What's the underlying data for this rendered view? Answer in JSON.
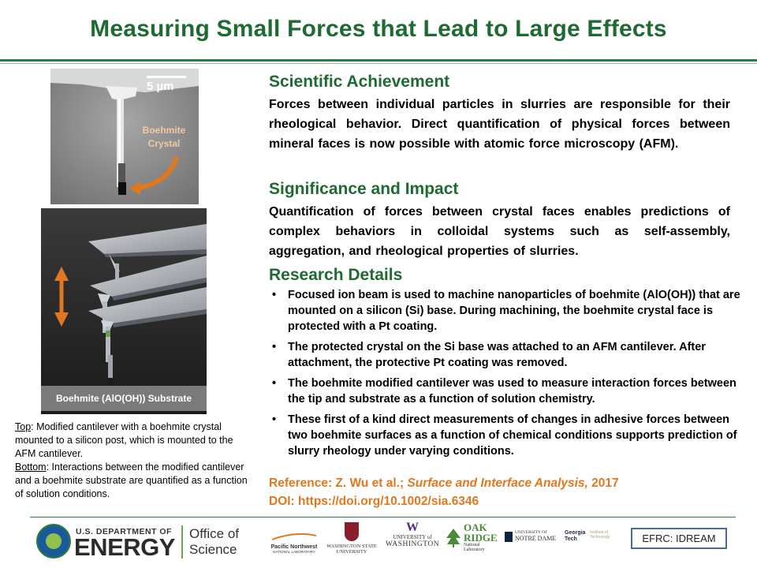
{
  "header": {
    "title": "Measuring Small Forces that Lead to Large Effects"
  },
  "sections": {
    "achievement": {
      "heading": "Scientific Achievement",
      "text": "Forces between individual particles in slurries are responsible for their rheological behavior. Direct quantification of physical forces between mineral faces is now possible with atomic force microscopy (AFM)."
    },
    "significance": {
      "heading": "Significance and Impact",
      "text": "Quantification of forces between crystal faces enables predictions of complex behaviors in colloidal systems such as self-assembly, aggregation, and rheological properties of slurries."
    },
    "details": {
      "heading": "Research Details",
      "bullets": [
        "Focused ion beam is used to machine nanoparticles of boehmite (AlO(OH)) that are mounted on a silicon (Si) base. During machining, the boehmite crystal face is protected with a Pt coating.",
        "The protected crystal on the Si base was attached to an AFM cantilever. After attachment, the protective Pt coating was removed.",
        "The boehmite modified cantilever was used to measure interaction forces between the tip and substrate as a function of solution chemistry.",
        "These first of a kind direct measurements of changes in adhesive forces between two boehmite surfaces as a function of chemical conditions supports prediction of slurry rheology under varying conditions."
      ]
    },
    "reference": {
      "prefix": "Reference: Z. Wu et al.; ",
      "journal": "Surface and Interface Analysis,",
      "year": " 2017",
      "doi": "DOI: https://doi.org/10.1002/sia.6346"
    }
  },
  "images": {
    "top": {
      "scale": "5 µm",
      "label_line1": "Boehmite",
      "label_line2": "Crystal"
    },
    "bottom": {
      "label": "Boehmite (AlO(OH)) Substrate"
    }
  },
  "caption": {
    "top_label": "Top",
    "top_text": ": Modified cantilever with a boehmite crystal mounted to a silicon post, which is mounted to the AFM cantilever.",
    "bottom_label": "Bottom",
    "bottom_text": ":  Interactions between the modified cantilever and a boehmite substrate are quantified as a function of solution conditions."
  },
  "footer": {
    "doe_small": "U.S. DEPARTMENT OF",
    "doe_big": "ENERGY",
    "office_line1": "Office of",
    "office_line2": "Science",
    "pnnl": "Pacific Northwest",
    "pnnl_sub": "NATIONAL LABORATORY",
    "wsu_line1": "WASHINGTON STATE",
    "wsu_line2": "UNIVERSITY",
    "uw_w": "W",
    "uw_line1": "UNIVERSITY of",
    "uw_line2": "WASHINGTON",
    "ornl_line1": "OAK",
    "ornl_line2": "RIDGE",
    "ornl_line3": "National Laboratory",
    "nd_line1": "UNIVERSITY OF",
    "nd_line2": "NOTRE DAME",
    "gt_line1": "Georgia",
    "gt_line2": "Tech",
    "gt_side": "Institute of Technology",
    "efrc": "EFRC: IDREAM"
  },
  "colors": {
    "green": "#1e6b32",
    "orange": "#e07820"
  }
}
